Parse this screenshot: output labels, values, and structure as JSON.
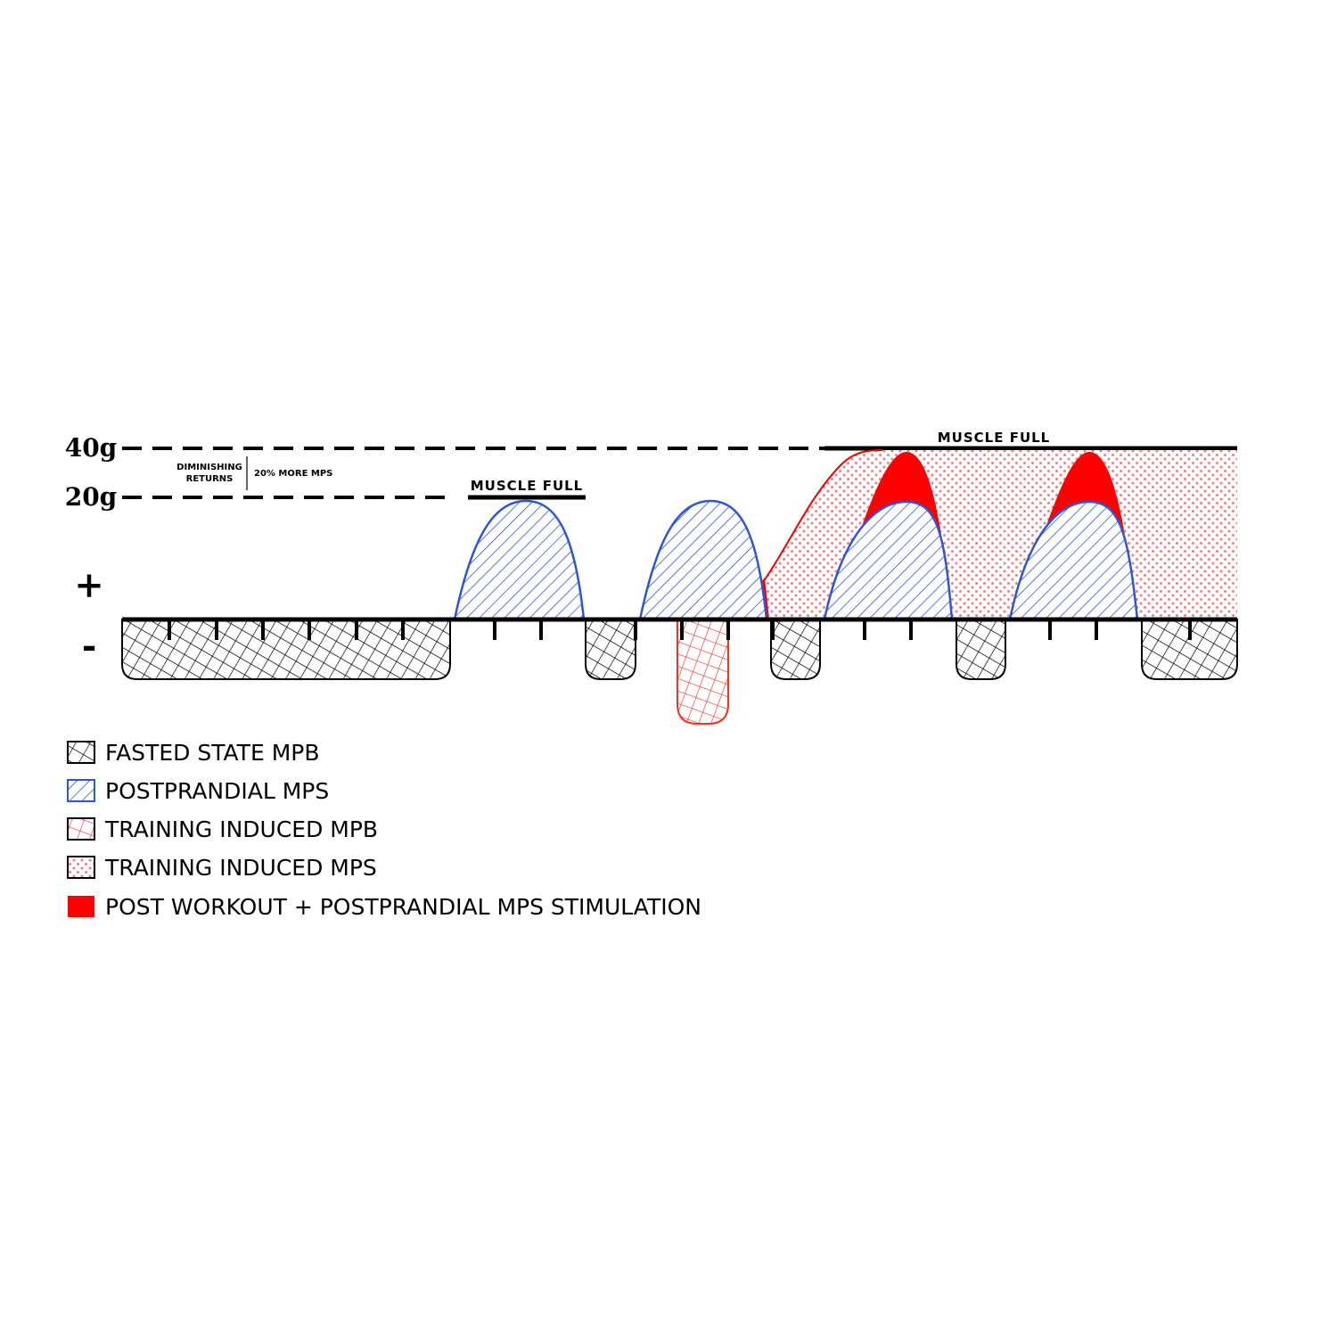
{
  "axis": {
    "top": "40g",
    "middle": "20g",
    "plus": "+",
    "minus": "-"
  },
  "annotations": {
    "diminishing_returns": [
      "DIMINISHING",
      "RETURNS"
    ],
    "more_mps": "20% MORE MPS",
    "muscle_full": [
      "MUSCLE FULL",
      "MUSCLE FULL"
    ]
  },
  "legend": [
    "FASTED STATE MPB",
    "POSTPRANDIAL MPS",
    "TRAINING INDUCED MPB",
    "TRAINING INDUCED MPS",
    "POST WORKOUT + POSTPRANDIAL MPS STIMULATION"
  ]
}
